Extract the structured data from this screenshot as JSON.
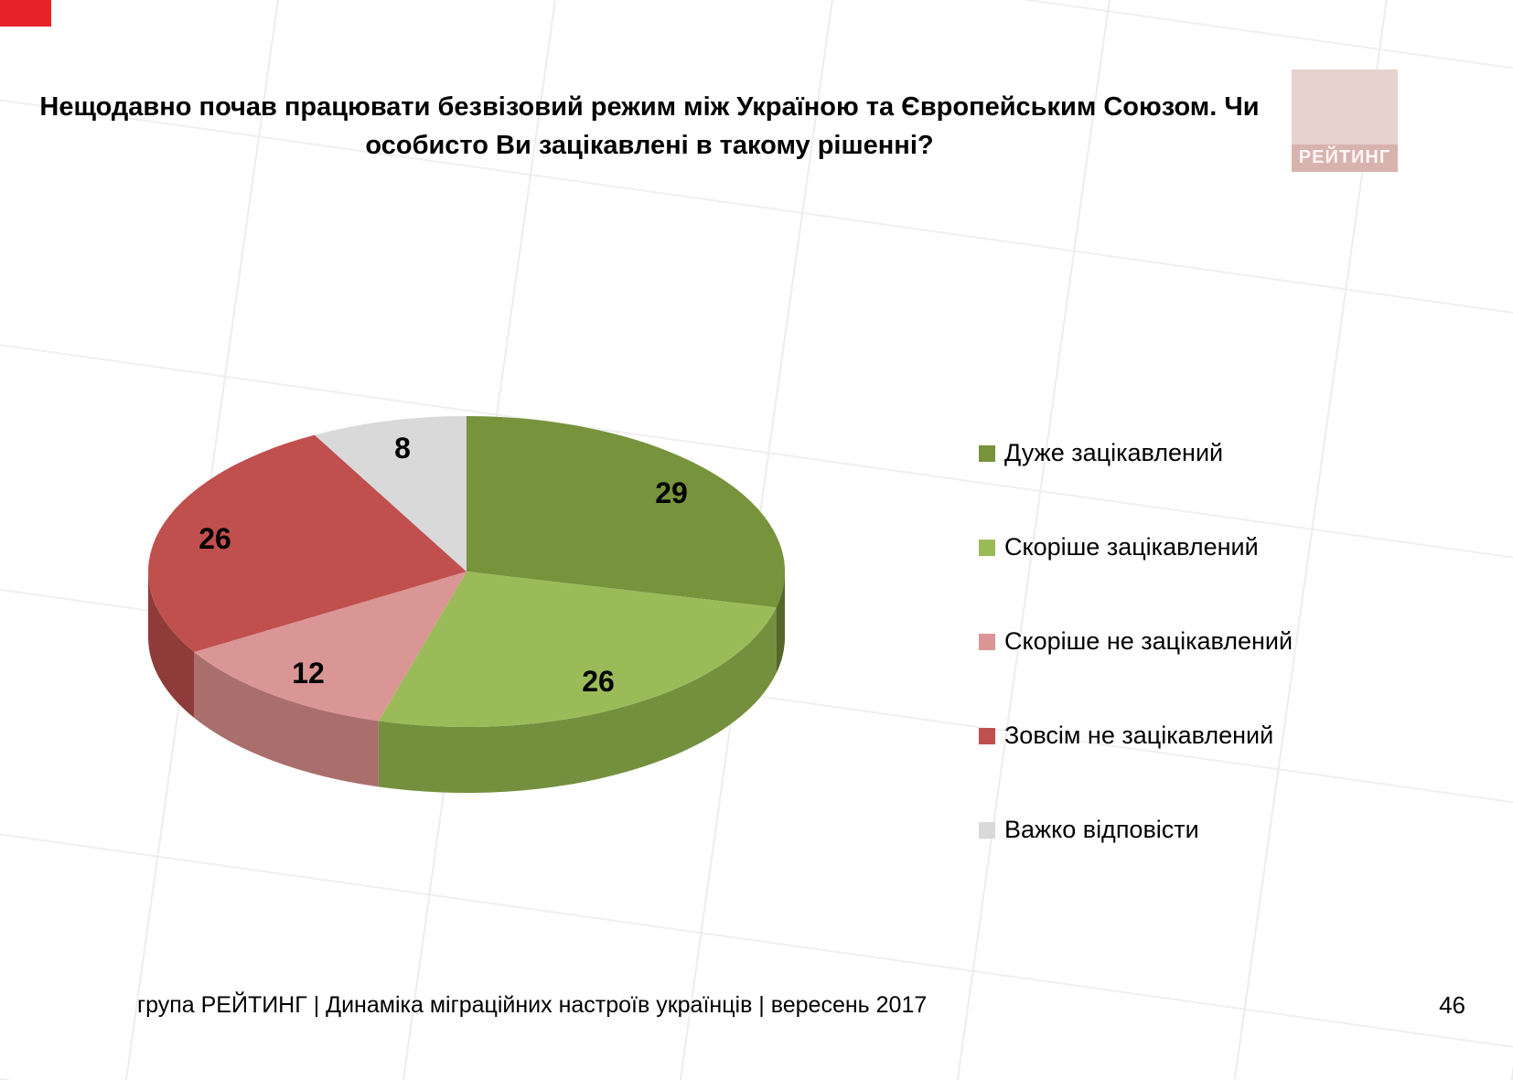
{
  "slide": {
    "title": "Нещодавно почав працювати безвізовий режим між Україною та Європейським Союзом. Чи особисто Ви зацікавлені в такому рішенні?",
    "footer": "група РЕЙТИНГ  | Динаміка міграційних настроїв українців  |  вересень 2017",
    "page_number": "46",
    "logo_text": "РЕЙТИНГ"
  },
  "chart_data": {
    "type": "pie",
    "style": "3d",
    "title": "Нещодавно почав працювати безвізовий режим між Україною та Європейським Союзом. Чи особисто Ви зацікавлені в такому рішенні?",
    "categories": [
      "Дуже зацікавлений",
      "Скоріше зацікавлений",
      "Скоріше не зацікавлений",
      "Зовсім не зацікавлений",
      "Важко відповісти"
    ],
    "values": [
      29,
      26,
      12,
      26,
      8
    ],
    "colors": [
      "#77933C",
      "#9BBB59",
      "#D99694",
      "#C0504D",
      "#D9D9D9"
    ],
    "side_colors": [
      "#55682B",
      "#74903F",
      "#A96F6D",
      "#8E3B39",
      "#A6A6A6"
    ],
    "start_angle_deg": 0,
    "direction": "clockwise",
    "legend_position": "right",
    "data_labels_shown": true
  }
}
